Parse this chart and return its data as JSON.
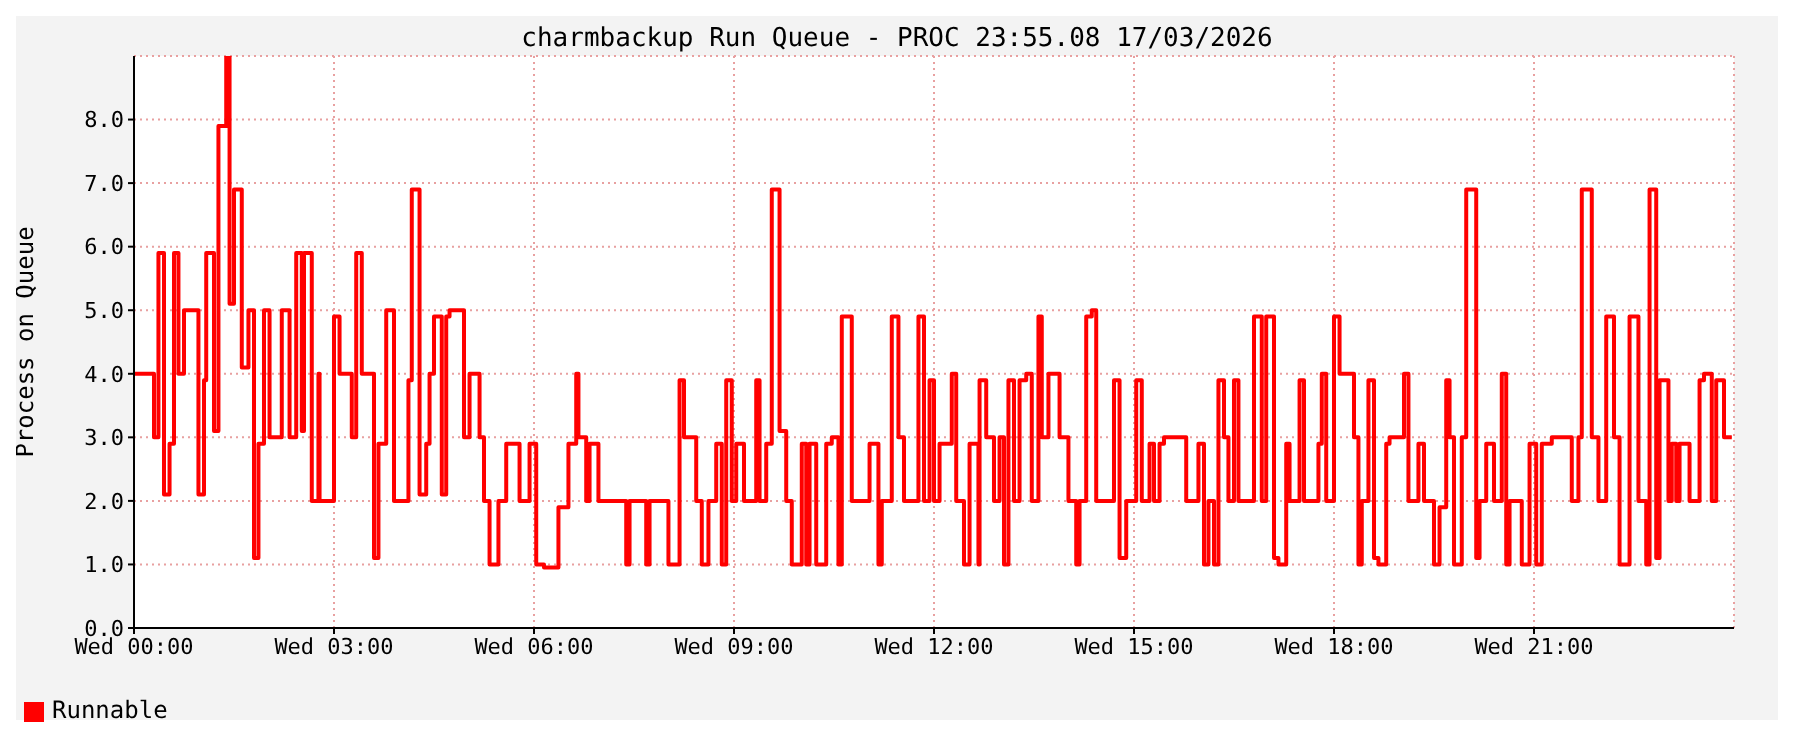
{
  "chart_data": {
    "type": "step",
    "title": "charmbackup Run Queue - PROC 23:55.08 17/03/2026",
    "ylabel": "Process on Queue",
    "xlim": [
      "2026-03-18T00:00",
      "2026-03-19T00:00"
    ],
    "xticks": [
      {
        "value": "2026-03-18T00:00",
        "label": "Wed 00:00"
      },
      {
        "value": "2026-03-18T03:00",
        "label": "Wed 03:00"
      },
      {
        "value": "2026-03-18T06:00",
        "label": "Wed 06:00"
      },
      {
        "value": "2026-03-18T09:00",
        "label": "Wed 09:00"
      },
      {
        "value": "2026-03-18T12:00",
        "label": "Wed 12:00"
      },
      {
        "value": "2026-03-18T15:00",
        "label": "Wed 15:00"
      },
      {
        "value": "2026-03-18T18:00",
        "label": "Wed 18:00"
      },
      {
        "value": "2026-03-18T21:00",
        "label": "Wed 21:00"
      }
    ],
    "ylim": [
      0,
      9
    ],
    "yticks": [
      {
        "value": 0,
        "label": "0.0"
      },
      {
        "value": 1,
        "label": "1.0"
      },
      {
        "value": 2,
        "label": "2.0"
      },
      {
        "value": 3,
        "label": "3.0"
      },
      {
        "value": 4,
        "label": "4.0"
      },
      {
        "value": 5,
        "label": "5.0"
      },
      {
        "value": 6,
        "label": "6.0"
      },
      {
        "value": 7,
        "label": "7.0"
      },
      {
        "value": 8,
        "label": "8.0"
      }
    ],
    "grid": true,
    "legend": "bottom left",
    "marker": "none",
    "line_style": "solid",
    "x": [
      "2026-03-18T00:00",
      "2026-03-18T00:18",
      "2026-03-18T00:22",
      "2026-03-18T00:27",
      "2026-03-18T00:32",
      "2026-03-18T00:36",
      "2026-03-18T00:40",
      "2026-03-18T00:45",
      "2026-03-18T00:58",
      "2026-03-18T01:03",
      "2026-03-18T01:05",
      "2026-03-18T01:12",
      "2026-03-18T01:16",
      "2026-03-18T01:23",
      "2026-03-18T01:26",
      "2026-03-18T01:30",
      "2026-03-18T01:37",
      "2026-03-18T01:43",
      "2026-03-18T01:48",
      "2026-03-18T01:52",
      "2026-03-18T01:57",
      "2026-03-18T02:02",
      "2026-03-18T02:13",
      "2026-03-18T02:20",
      "2026-03-18T02:26",
      "2026-03-18T02:31",
      "2026-03-18T02:33",
      "2026-03-18T02:40",
      "2026-03-18T02:46",
      "2026-03-18T02:47",
      "2026-03-18T03:00",
      "2026-03-18T03:05",
      "2026-03-18T03:16",
      "2026-03-18T03:20",
      "2026-03-18T03:25",
      "2026-03-18T03:36",
      "2026-03-18T03:40",
      "2026-03-18T03:47",
      "2026-03-18T03:54",
      "2026-03-18T04:07",
      "2026-03-18T04:10",
      "2026-03-18T04:17",
      "2026-03-18T04:23",
      "2026-03-18T04:26",
      "2026-03-18T04:30",
      "2026-03-18T04:37",
      "2026-03-18T04:41",
      "2026-03-18T04:44",
      "2026-03-18T04:57",
      "2026-03-18T05:02",
      "2026-03-18T05:11",
      "2026-03-18T05:15",
      "2026-03-18T05:20",
      "2026-03-18T05:28",
      "2026-03-18T05:35",
      "2026-03-18T05:47",
      "2026-03-18T05:56",
      "2026-03-18T06:02",
      "2026-03-18T06:09",
      "2026-03-18T06:22",
      "2026-03-18T06:31",
      "2026-03-18T06:38",
      "2026-03-18T06:40",
      "2026-03-18T06:47",
      "2026-03-18T06:50",
      "2026-03-18T06:58",
      "2026-03-18T07:23",
      "2026-03-18T07:26",
      "2026-03-18T07:41",
      "2026-03-18T07:44",
      "2026-03-18T08:01",
      "2026-03-18T08:11",
      "2026-03-18T08:15",
      "2026-03-18T08:26",
      "2026-03-18T08:31",
      "2026-03-18T08:37",
      "2026-03-18T08:44",
      "2026-03-18T08:49",
      "2026-03-18T08:53",
      "2026-03-18T08:58",
      "2026-03-18T09:02",
      "2026-03-18T09:09",
      "2026-03-18T09:20",
      "2026-03-18T09:23",
      "2026-03-18T09:29",
      "2026-03-18T09:34",
      "2026-03-18T09:41",
      "2026-03-18T09:47",
      "2026-03-18T09:52",
      "2026-03-18T10:01",
      "2026-03-18T10:05",
      "2026-03-18T10:08",
      "2026-03-18T10:14",
      "2026-03-18T10:23",
      "2026-03-18T10:28",
      "2026-03-18T10:34",
      "2026-03-18T10:37",
      "2026-03-18T10:46",
      "2026-03-18T11:02",
      "2026-03-18T11:10",
      "2026-03-18T11:13",
      "2026-03-18T11:22",
      "2026-03-18T11:28",
      "2026-03-18T11:33",
      "2026-03-18T11:46",
      "2026-03-18T11:51",
      "2026-03-18T11:56",
      "2026-03-18T12:00",
      "2026-03-18T12:05",
      "2026-03-18T12:16",
      "2026-03-18T12:20",
      "2026-03-18T12:27",
      "2026-03-18T12:32",
      "2026-03-18T12:40",
      "2026-03-18T12:41",
      "2026-03-18T12:47",
      "2026-03-18T12:54",
      "2026-03-18T12:59",
      "2026-03-18T13:03",
      "2026-03-18T13:07",
      "2026-03-18T13:12",
      "2026-03-18T13:17",
      "2026-03-18T13:23",
      "2026-03-18T13:28",
      "2026-03-18T13:34",
      "2026-03-18T13:37",
      "2026-03-18T13:43",
      "2026-03-18T13:53",
      "2026-03-18T14:01",
      "2026-03-18T14:08",
      "2026-03-18T14:11",
      "2026-03-18T14:17",
      "2026-03-18T14:22",
      "2026-03-18T14:26",
      "2026-03-18T14:42",
      "2026-03-18T14:47",
      "2026-03-18T14:53",
      "2026-03-18T15:02",
      "2026-03-18T15:07",
      "2026-03-18T15:14",
      "2026-03-18T15:18",
      "2026-03-18T15:23",
      "2026-03-18T15:27",
      "2026-03-18T15:47",
      "2026-03-18T15:58",
      "2026-03-18T16:03",
      "2026-03-18T16:07",
      "2026-03-18T16:12",
      "2026-03-18T16:16",
      "2026-03-18T16:21",
      "2026-03-18T16:25",
      "2026-03-18T16:30",
      "2026-03-18T16:34",
      "2026-03-18T16:48",
      "2026-03-18T16:55",
      "2026-03-18T16:59",
      "2026-03-18T17:06",
      "2026-03-18T17:10",
      "2026-03-18T17:17",
      "2026-03-18T17:20",
      "2026-03-18T17:29",
      "2026-03-18T17:33",
      "2026-03-18T17:46",
      "2026-03-18T17:49",
      "2026-03-18T17:53",
      "2026-03-18T18:00",
      "2026-03-18T18:05",
      "2026-03-18T18:18",
      "2026-03-18T18:22",
      "2026-03-18T18:25",
      "2026-03-18T18:31",
      "2026-03-18T18:36",
      "2026-03-18T18:40",
      "2026-03-18T18:47",
      "2026-03-18T18:50",
      "2026-03-18T19:03",
      "2026-03-18T19:07",
      "2026-03-18T19:16",
      "2026-03-18T19:21",
      "2026-03-18T19:30",
      "2026-03-18T19:35",
      "2026-03-18T19:41",
      "2026-03-18T19:44",
      "2026-03-18T19:48",
      "2026-03-18T19:55",
      "2026-03-18T19:59",
      "2026-03-18T20:08",
      "2026-03-18T20:11",
      "2026-03-18T20:17",
      "2026-03-18T20:24",
      "2026-03-18T20:31",
      "2026-03-18T20:35",
      "2026-03-18T20:38",
      "2026-03-18T20:49",
      "2026-03-18T20:56",
      "2026-03-18T21:02",
      "2026-03-18T21:07",
      "2026-03-18T21:16",
      "2026-03-18T21:34",
      "2026-03-18T21:40",
      "2026-03-18T21:43",
      "2026-03-18T21:52",
      "2026-03-18T21:58",
      "2026-03-18T22:05",
      "2026-03-18T22:12",
      "2026-03-18T22:17",
      "2026-03-18T22:26",
      "2026-03-18T22:34",
      "2026-03-18T22:41",
      "2026-03-18T22:44",
      "2026-03-18T22:50",
      "2026-03-18T22:53",
      "2026-03-18T23:01",
      "2026-03-18T23:04",
      "2026-03-18T23:08",
      "2026-03-18T23:11",
      "2026-03-18T23:20",
      "2026-03-18T23:29",
      "2026-03-18T23:33",
      "2026-03-18T23:40",
      "2026-03-18T23:44",
      "2026-03-18T23:51",
      "2026-03-18T23:58"
    ],
    "series": [
      {
        "name": "Runnable",
        "color": "#ff0000",
        "values": [
          4.0,
          3.0,
          5.9,
          2.1,
          2.9,
          5.9,
          4.0,
          5.0,
          2.1,
          3.9,
          5.9,
          3.1,
          7.9,
          9.0,
          5.1,
          6.9,
          4.1,
          5.0,
          1.1,
          2.9,
          5.0,
          3.0,
          5.0,
          3.0,
          5.9,
          3.1,
          5.9,
          2.0,
          4.0,
          2.0,
          4.9,
          4.0,
          3.0,
          5.9,
          4.0,
          1.1,
          2.9,
          5.0,
          2.0,
          3.9,
          6.9,
          2.1,
          2.9,
          4.0,
          4.9,
          2.1,
          4.9,
          5.0,
          3.0,
          4.0,
          3.0,
          2.0,
          1.0,
          2.0,
          2.9,
          2.0,
          2.9,
          1.0,
          0.95,
          1.9,
          2.9,
          4.0,
          3.0,
          2.0,
          2.9,
          2.0,
          1.0,
          2.0,
          1.0,
          2.0,
          1.0,
          3.9,
          3.0,
          2.0,
          1.0,
          2.0,
          2.9,
          1.0,
          3.9,
          2.0,
          2.9,
          2.0,
          3.9,
          2.0,
          2.9,
          6.9,
          3.1,
          2.0,
          1.0,
          2.9,
          1.0,
          2.9,
          1.0,
          2.9,
          3.0,
          1.0,
          4.9,
          2.0,
          2.9,
          1.0,
          2.0,
          4.9,
          3.0,
          2.0,
          4.9,
          2.0,
          3.9,
          2.0,
          2.9,
          4.0,
          2.0,
          1.0,
          2.9,
          1.0,
          3.9,
          3.0,
          2.0,
          3.0,
          1.0,
          3.9,
          2.0,
          3.9,
          4.0,
          2.0,
          4.9,
          3.0,
          4.0,
          3.0,
          2.0,
          1.0,
          2.0,
          4.9,
          5.0,
          2.0,
          3.9,
          1.1,
          2.0,
          3.9,
          2.0,
          2.9,
          2.0,
          2.9,
          3.0,
          2.0,
          2.9,
          1.0,
          2.0,
          1.0,
          3.9,
          3.0,
          2.0,
          3.9,
          2.0,
          4.9,
          2.0,
          4.9,
          1.1,
          1.0,
          2.9,
          2.0,
          3.9,
          2.0,
          2.9,
          4.0,
          2.0,
          4.9,
          4.0,
          3.0,
          1.0,
          2.0,
          3.9,
          1.1,
          1.0,
          2.9,
          3.0,
          4.0,
          2.0,
          2.9,
          2.0,
          1.0,
          1.9,
          3.9,
          3.0,
          1.0,
          3.0,
          6.9,
          1.1,
          2.0,
          2.9,
          2.0,
          4.0,
          1.0,
          2.0,
          1.0,
          2.9,
          1.0,
          2.9,
          3.0,
          2.0,
          3.0,
          6.9,
          3.0,
          2.0,
          4.9,
          3.0,
          1.0,
          4.9,
          2.0,
          1.0,
          6.9,
          1.1,
          3.9,
          2.0,
          2.9,
          2.0,
          2.9,
          2.0,
          3.9,
          4.0,
          2.0,
          3.9,
          3.0,
          3.0
        ]
      }
    ]
  }
}
